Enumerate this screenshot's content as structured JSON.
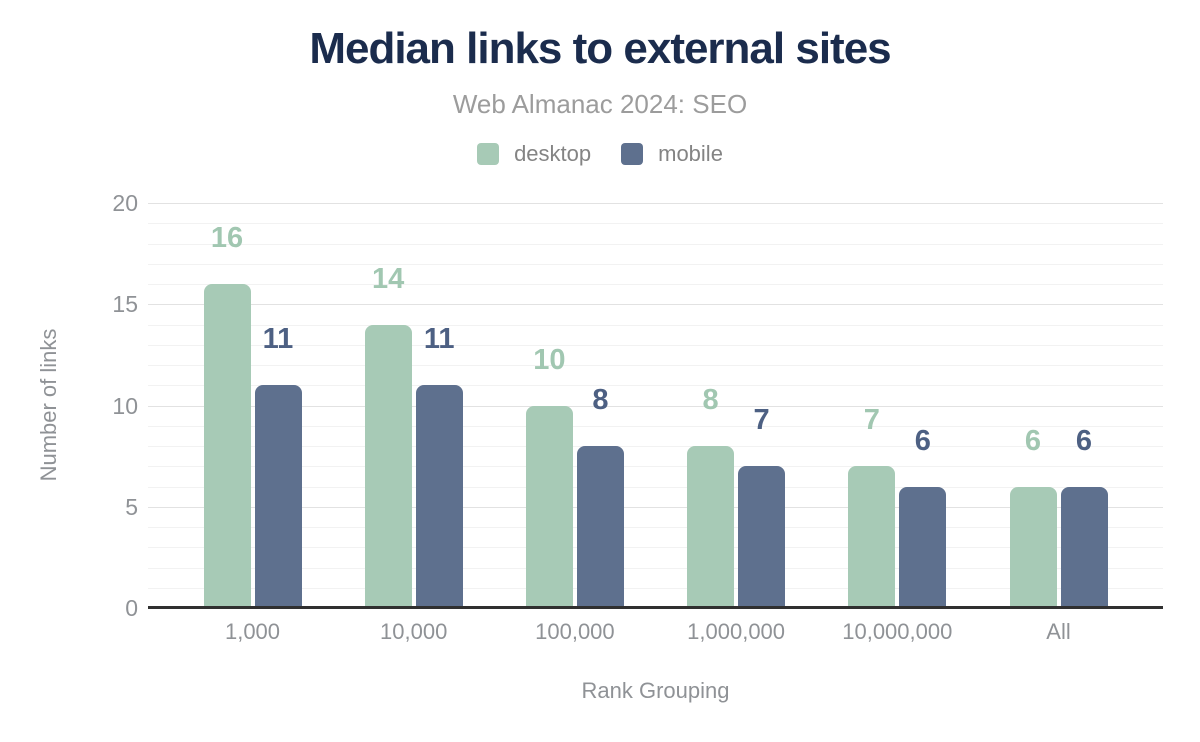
{
  "chart_data": {
    "type": "bar",
    "title": "Median links to external sites",
    "subtitle": "Web Almanac 2024: SEO",
    "categories": [
      "1,000",
      "10,000",
      "100,000",
      "1,000,000",
      "10,000,000",
      "All"
    ],
    "series": [
      {
        "name": "desktop",
        "color": "#a7cab6",
        "label_color": "#a1c7b1",
        "values": [
          16,
          14,
          10,
          8,
          7,
          6
        ]
      },
      {
        "name": "mobile",
        "color": "#5e708e",
        "label_color": "#4d6083",
        "values": [
          11,
          11,
          8,
          7,
          6,
          6
        ]
      }
    ],
    "xlabel": "Rank Grouping",
    "ylabel": "Number of links",
    "ylim": [
      0,
      20
    ],
    "yticks": [
      0,
      5,
      10,
      15,
      20
    ],
    "grid": "horizontal, minor every 1 + major every 5",
    "legend_position": "top",
    "data_labels": true
  },
  "colors": {
    "title": "#1b2c4d",
    "subtitle": "#9c9c9c",
    "tick_label": "#8f9296",
    "axis_title": "#8f9296",
    "legend_label": "#848484",
    "axis_line": "#303030",
    "grid_major": "#e2e2e2",
    "grid_minor": "#f2f2f2",
    "background": "#ffffff"
  }
}
